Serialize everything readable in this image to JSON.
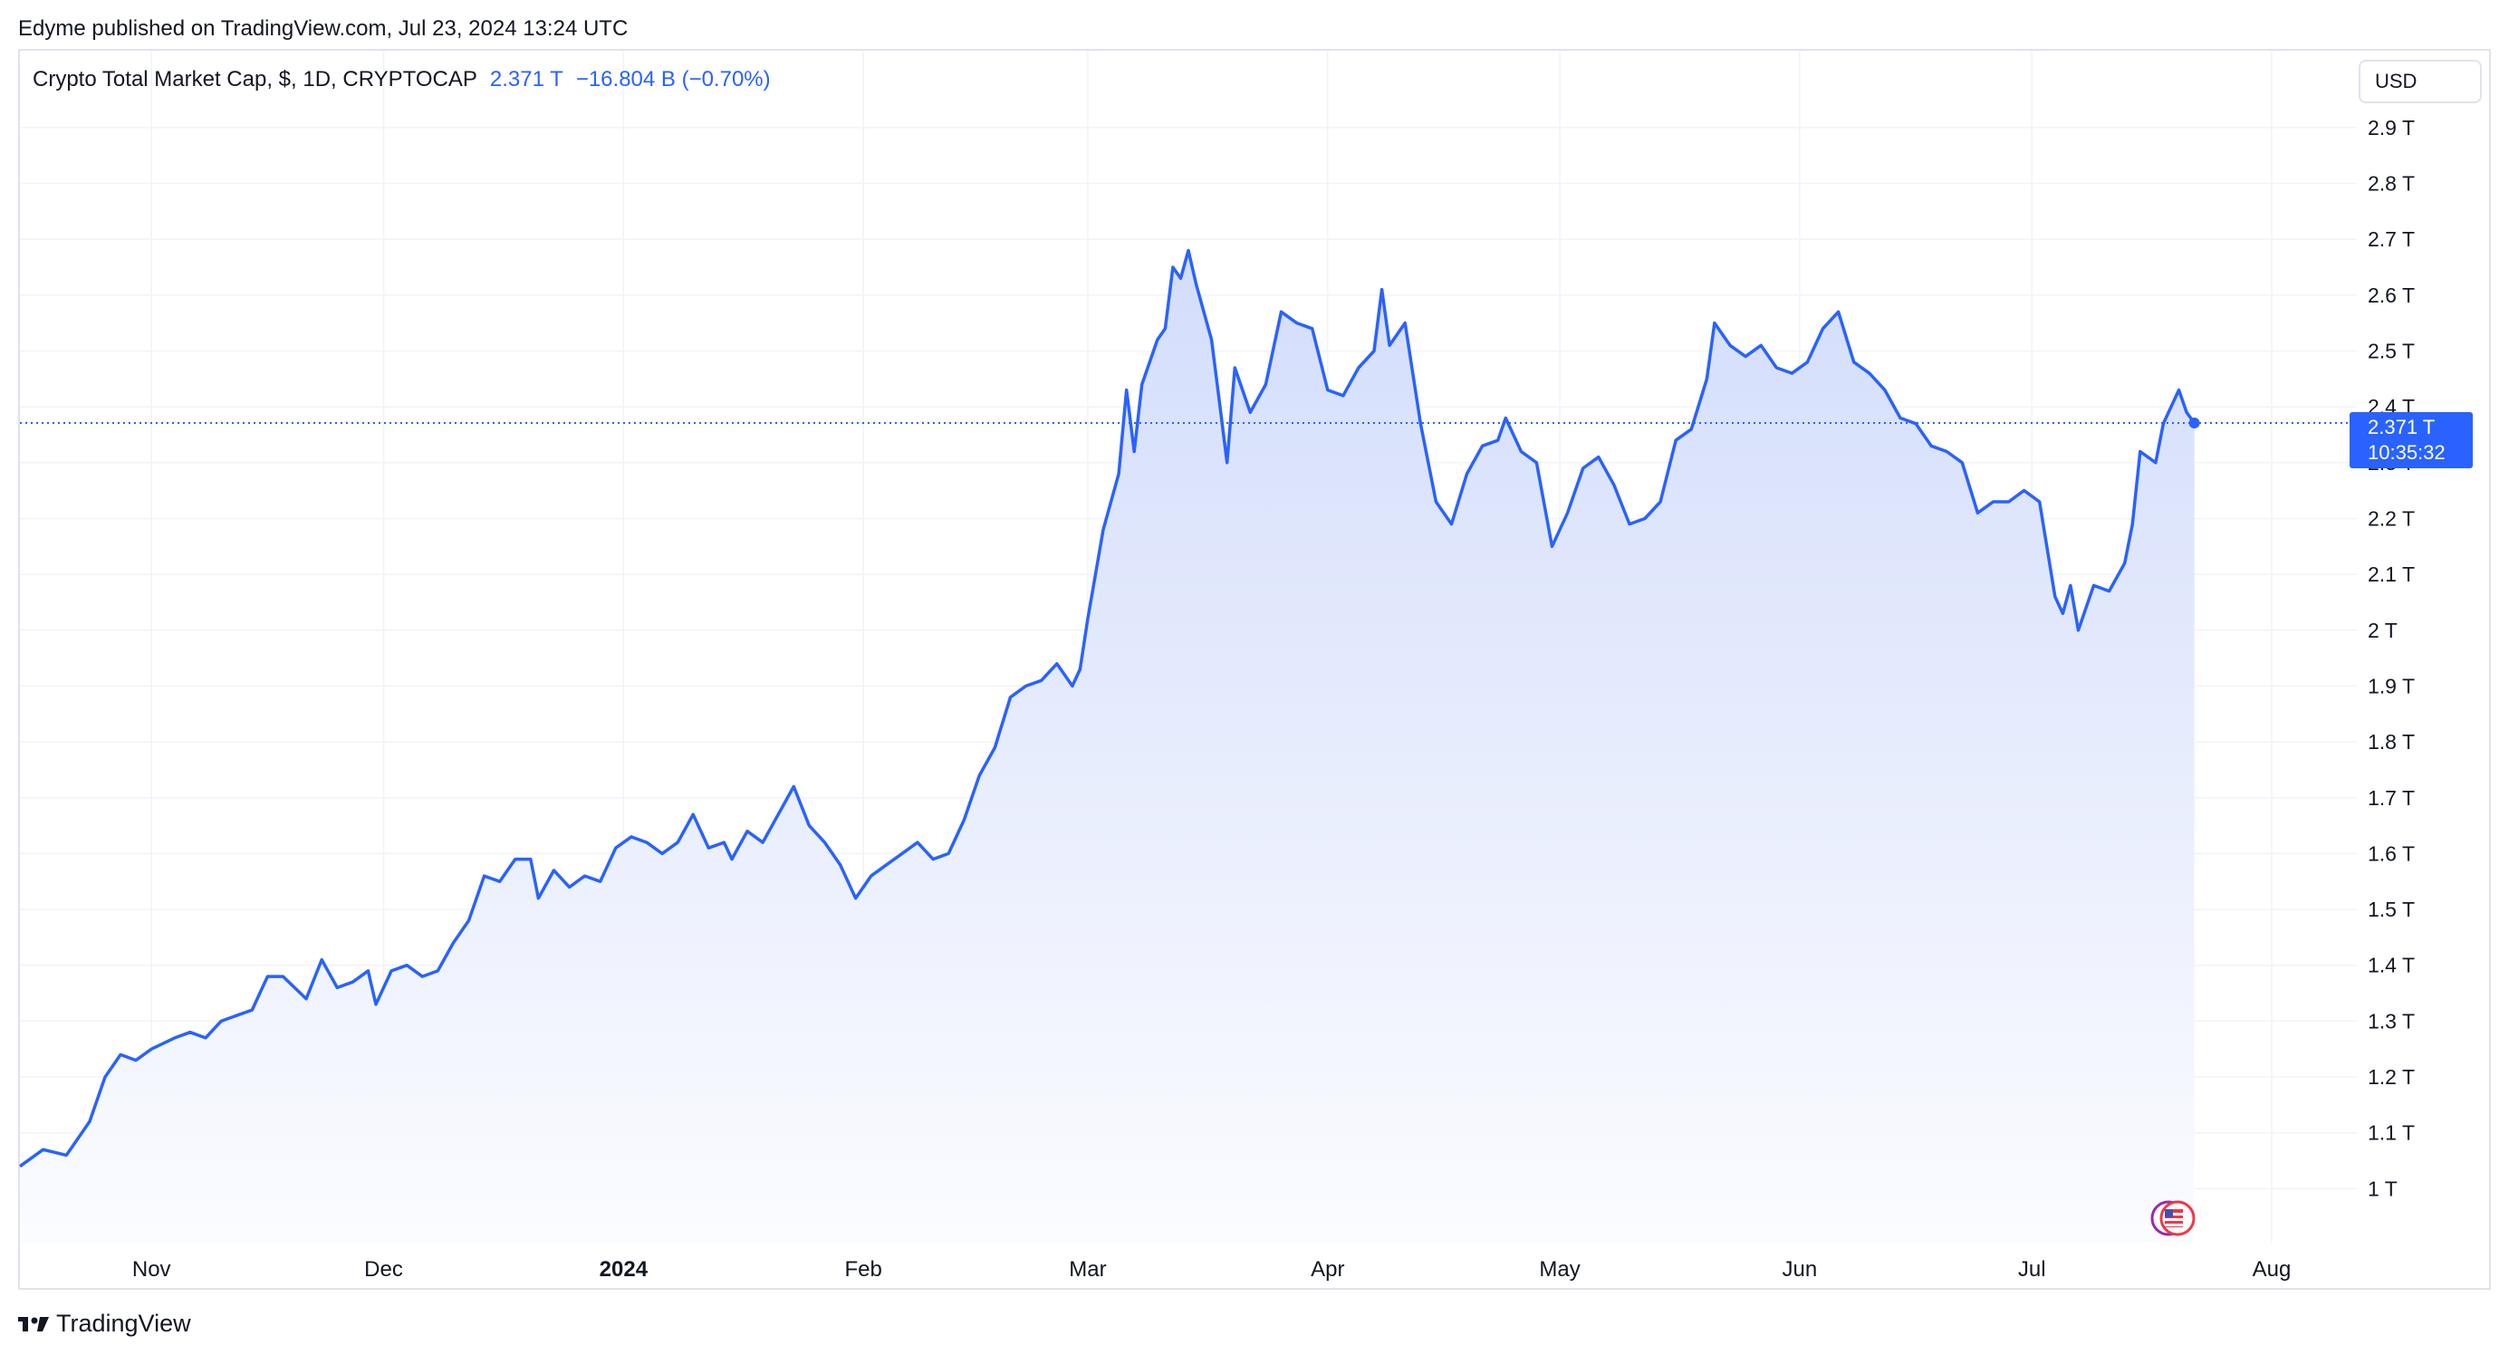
{
  "header": {
    "published": "Edyme published on TradingView.com, Jul 23, 2024 13:24 UTC"
  },
  "legend": {
    "symbol": "Crypto Total Market Cap, $, 1D, CRYPTOCAP",
    "last": "2.371 T",
    "change": "−16.804 B (−0.70%)"
  },
  "currency": {
    "label": "USD"
  },
  "price_tag": {
    "value": "2.371 T",
    "countdown": "10:35:32"
  },
  "footer": {
    "brand": "TradingView"
  },
  "colors": {
    "line": "#2962ff",
    "fill_top": "#d6e0fb",
    "fill_bottom": "#ffffff",
    "grid": "#f0f3fa",
    "tag": "#2962ff"
  },
  "chart_data": {
    "type": "area",
    "title": "Crypto Total Market Cap, $, 1D, CRYPTOCAP",
    "xlabel": "",
    "ylabel": "",
    "unit": "T USD",
    "ylim": [
      0.95,
      3.0
    ],
    "y_ticks": [
      1,
      1.1,
      1.2,
      1.3,
      1.4,
      1.5,
      1.6,
      1.7,
      1.8,
      1.9,
      2,
      2.1,
      2.2,
      2.3,
      2.4,
      2.5,
      2.6,
      2.7,
      2.8,
      2.9
    ],
    "y_tick_labels": [
      "1 T",
      "1.1 T",
      "1.2 T",
      "1.3 T",
      "1.4 T",
      "1.5 T",
      "1.6 T",
      "1.7 T",
      "1.8 T",
      "1.9 T",
      "2 T",
      "2.1 T",
      "2.2 T",
      "2.3 T",
      "2.4 T",
      "2.5 T",
      "2.6 T",
      "2.7 T",
      "2.8 T",
      "2.9 T"
    ],
    "x_ticks": [
      {
        "label": "Nov",
        "date": "2023-11-01"
      },
      {
        "label": "Dec",
        "date": "2023-12-01"
      },
      {
        "label": "2024",
        "date": "2024-01-01",
        "bold": true
      },
      {
        "label": "Feb",
        "date": "2024-02-01"
      },
      {
        "label": "Mar",
        "date": "2024-03-01"
      },
      {
        "label": "Apr",
        "date": "2024-04-01"
      },
      {
        "label": "May",
        "date": "2024-05-01"
      },
      {
        "label": "Jun",
        "date": "2024-06-01"
      },
      {
        "label": "Jul",
        "date": "2024-07-01"
      },
      {
        "label": "Aug",
        "date": "2024-08-01"
      }
    ],
    "last_value": 2.371,
    "series": [
      {
        "values": [
          [
            "2023-10-15",
            1.04
          ],
          [
            "2023-10-18",
            1.07
          ],
          [
            "2023-10-21",
            1.06
          ],
          [
            "2023-10-24",
            1.12
          ],
          [
            "2023-10-26",
            1.2
          ],
          [
            "2023-10-28",
            1.24
          ],
          [
            "2023-10-30",
            1.23
          ],
          [
            "2023-11-01",
            1.25
          ],
          [
            "2023-11-04",
            1.27
          ],
          [
            "2023-11-06",
            1.28
          ],
          [
            "2023-11-08",
            1.27
          ],
          [
            "2023-11-10",
            1.3
          ],
          [
            "2023-11-12",
            1.31
          ],
          [
            "2023-11-14",
            1.32
          ],
          [
            "2023-11-16",
            1.38
          ],
          [
            "2023-11-18",
            1.38
          ],
          [
            "2023-11-21",
            1.34
          ],
          [
            "2023-11-23",
            1.41
          ],
          [
            "2023-11-25",
            1.36
          ],
          [
            "2023-11-27",
            1.37
          ],
          [
            "2023-11-29",
            1.39
          ],
          [
            "2023-11-30",
            1.33
          ],
          [
            "2023-12-02",
            1.39
          ],
          [
            "2023-12-04",
            1.4
          ],
          [
            "2023-12-06",
            1.38
          ],
          [
            "2023-12-08",
            1.39
          ],
          [
            "2023-12-10",
            1.44
          ],
          [
            "2023-12-12",
            1.48
          ],
          [
            "2023-12-14",
            1.56
          ],
          [
            "2023-12-16",
            1.55
          ],
          [
            "2023-12-18",
            1.59
          ],
          [
            "2023-12-20",
            1.59
          ],
          [
            "2023-12-21",
            1.52
          ],
          [
            "2023-12-23",
            1.57
          ],
          [
            "2023-12-25",
            1.54
          ],
          [
            "2023-12-27",
            1.56
          ],
          [
            "2023-12-29",
            1.55
          ],
          [
            "2023-12-31",
            1.61
          ],
          [
            "2024-01-02",
            1.63
          ],
          [
            "2024-01-04",
            1.62
          ],
          [
            "2024-01-06",
            1.6
          ],
          [
            "2024-01-08",
            1.62
          ],
          [
            "2024-01-10",
            1.67
          ],
          [
            "2024-01-12",
            1.61
          ],
          [
            "2024-01-14",
            1.62
          ],
          [
            "2024-01-15",
            1.59
          ],
          [
            "2024-01-17",
            1.64
          ],
          [
            "2024-01-19",
            1.62
          ],
          [
            "2024-01-21",
            1.67
          ],
          [
            "2024-01-23",
            1.72
          ],
          [
            "2024-01-25",
            1.65
          ],
          [
            "2024-01-27",
            1.62
          ],
          [
            "2024-01-29",
            1.58
          ],
          [
            "2024-01-31",
            1.52
          ],
          [
            "2024-02-02",
            1.56
          ],
          [
            "2024-02-04",
            1.58
          ],
          [
            "2024-02-06",
            1.6
          ],
          [
            "2024-02-08",
            1.62
          ],
          [
            "2024-02-10",
            1.59
          ],
          [
            "2024-02-12",
            1.6
          ],
          [
            "2024-02-14",
            1.66
          ],
          [
            "2024-02-16",
            1.74
          ],
          [
            "2024-02-18",
            1.79
          ],
          [
            "2024-02-20",
            1.88
          ],
          [
            "2024-02-22",
            1.9
          ],
          [
            "2024-02-24",
            1.91
          ],
          [
            "2024-02-26",
            1.94
          ],
          [
            "2024-02-28",
            1.9
          ],
          [
            "2024-02-29",
            1.93
          ],
          [
            "2024-03-01",
            2.02
          ],
          [
            "2024-03-03",
            2.18
          ],
          [
            "2024-03-05",
            2.28
          ],
          [
            "2024-03-06",
            2.43
          ],
          [
            "2024-03-07",
            2.32
          ],
          [
            "2024-03-08",
            2.44
          ],
          [
            "2024-03-10",
            2.52
          ],
          [
            "2024-03-11",
            2.54
          ],
          [
            "2024-03-12",
            2.65
          ],
          [
            "2024-03-13",
            2.63
          ],
          [
            "2024-03-14",
            2.68
          ],
          [
            "2024-03-15",
            2.62
          ],
          [
            "2024-03-17",
            2.52
          ],
          [
            "2024-03-18",
            2.41
          ],
          [
            "2024-03-19",
            2.3
          ],
          [
            "2024-03-20",
            2.47
          ],
          [
            "2024-03-22",
            2.39
          ],
          [
            "2024-03-24",
            2.44
          ],
          [
            "2024-03-26",
            2.57
          ],
          [
            "2024-03-28",
            2.55
          ],
          [
            "2024-03-30",
            2.54
          ],
          [
            "2024-04-01",
            2.43
          ],
          [
            "2024-04-03",
            2.42
          ],
          [
            "2024-04-05",
            2.47
          ],
          [
            "2024-04-07",
            2.5
          ],
          [
            "2024-04-08",
            2.61
          ],
          [
            "2024-04-09",
            2.51
          ],
          [
            "2024-04-11",
            2.55
          ],
          [
            "2024-04-13",
            2.37
          ],
          [
            "2024-04-15",
            2.23
          ],
          [
            "2024-04-17",
            2.19
          ],
          [
            "2024-04-19",
            2.28
          ],
          [
            "2024-04-21",
            2.33
          ],
          [
            "2024-04-23",
            2.34
          ],
          [
            "2024-04-24",
            2.38
          ],
          [
            "2024-04-26",
            2.32
          ],
          [
            "2024-04-28",
            2.3
          ],
          [
            "2024-04-30",
            2.15
          ],
          [
            "2024-05-02",
            2.21
          ],
          [
            "2024-05-04",
            2.29
          ],
          [
            "2024-05-06",
            2.31
          ],
          [
            "2024-05-08",
            2.26
          ],
          [
            "2024-05-10",
            2.19
          ],
          [
            "2024-05-12",
            2.2
          ],
          [
            "2024-05-14",
            2.23
          ],
          [
            "2024-05-16",
            2.34
          ],
          [
            "2024-05-18",
            2.36
          ],
          [
            "2024-05-20",
            2.45
          ],
          [
            "2024-05-21",
            2.55
          ],
          [
            "2024-05-23",
            2.51
          ],
          [
            "2024-05-25",
            2.49
          ],
          [
            "2024-05-27",
            2.51
          ],
          [
            "2024-05-29",
            2.47
          ],
          [
            "2024-05-31",
            2.46
          ],
          [
            "2024-06-02",
            2.48
          ],
          [
            "2024-06-04",
            2.54
          ],
          [
            "2024-06-06",
            2.57
          ],
          [
            "2024-06-08",
            2.48
          ],
          [
            "2024-06-10",
            2.46
          ],
          [
            "2024-06-12",
            2.43
          ],
          [
            "2024-06-14",
            2.38
          ],
          [
            "2024-06-16",
            2.37
          ],
          [
            "2024-06-18",
            2.33
          ],
          [
            "2024-06-20",
            2.32
          ],
          [
            "2024-06-22",
            2.3
          ],
          [
            "2024-06-24",
            2.21
          ],
          [
            "2024-06-26",
            2.23
          ],
          [
            "2024-06-28",
            2.23
          ],
          [
            "2024-06-30",
            2.25
          ],
          [
            "2024-07-02",
            2.23
          ],
          [
            "2024-07-04",
            2.06
          ],
          [
            "2024-07-05",
            2.03
          ],
          [
            "2024-07-06",
            2.08
          ],
          [
            "2024-07-07",
            2.0
          ],
          [
            "2024-07-09",
            2.08
          ],
          [
            "2024-07-11",
            2.07
          ],
          [
            "2024-07-13",
            2.12
          ],
          [
            "2024-07-14",
            2.19
          ],
          [
            "2024-07-15",
            2.32
          ],
          [
            "2024-07-17",
            2.3
          ],
          [
            "2024-07-18",
            2.37
          ],
          [
            "2024-07-20",
            2.43
          ],
          [
            "2024-07-21",
            2.39
          ],
          [
            "2024-07-22",
            2.371
          ]
        ]
      }
    ]
  }
}
